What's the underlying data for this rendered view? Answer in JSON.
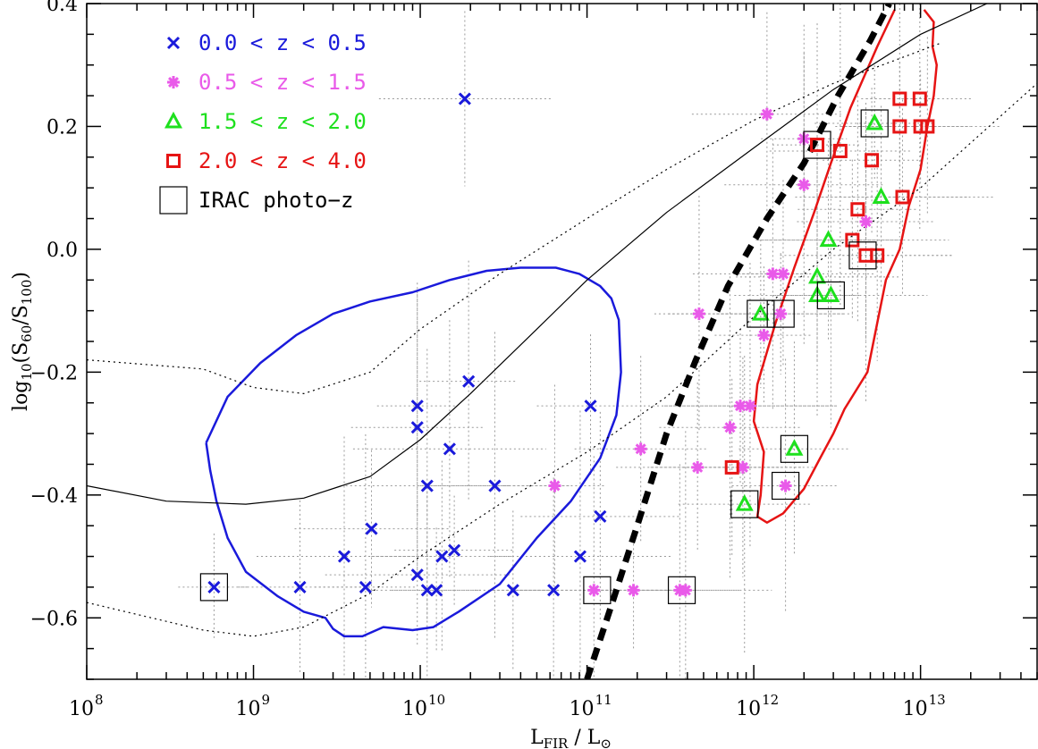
{
  "chart_data": {
    "type": "scatter",
    "xlabel_main": "L",
    "xlabel_sub": "FIR",
    "xlabel_rest": " / L",
    "xlabel_sun": "⊙",
    "ylabel_pre": "log",
    "ylabel_sub1": "10",
    "ylabel_mid": "(S",
    "ylabel_sub2": "60",
    "ylabel_mid2": "/S",
    "ylabel_sub3": "100",
    "ylabel_post": ")",
    "x_scale": "log",
    "xlim": [
      100000000.0,
      50000000000000.0
    ],
    "ylim": [
      -0.7,
      0.4
    ],
    "x_ticks": [
      {
        "base": "10",
        "exp": "8",
        "value": 100000000.0
      },
      {
        "base": "10",
        "exp": "9",
        "value": 1000000000.0
      },
      {
        "base": "10",
        "exp": "10",
        "value": 10000000000.0
      },
      {
        "base": "10",
        "exp": "11",
        "value": 100000000000.0
      },
      {
        "base": "10",
        "exp": "12",
        "value": 1000000000000.0
      },
      {
        "base": "10",
        "exp": "13",
        "value": 10000000000000.0
      }
    ],
    "y_ticks": [
      {
        "label": "0.4",
        "value": 0.4
      },
      {
        "label": "0.2",
        "value": 0.2
      },
      {
        "label": "0.0",
        "value": 0.0
      },
      {
        "label": "−0.2",
        "value": -0.2
      },
      {
        "label": "−0.4",
        "value": -0.4
      },
      {
        "label": "−0.6",
        "value": -0.6
      }
    ],
    "legend": [
      {
        "label": "0.0 < z < 0.5",
        "marker": "x",
        "color": "#1a1adb"
      },
      {
        "label": "0.5 < z < 1.5",
        "marker": "asterisk",
        "color": "#e95ae9"
      },
      {
        "label": "1.5 < z < 2.0",
        "marker": "triangle",
        "color": "#1ee01e"
      },
      {
        "label": "2.0 < z < 4.0",
        "marker": "square",
        "color": "#e61414"
      },
      {
        "label": "IRAC photo−z",
        "marker": "box",
        "color": "#000000"
      }
    ],
    "series": [
      {
        "name": "0.0 < z < 0.5",
        "marker": "x",
        "color": "#1a1adb",
        "points": [
          [
            580000000.0,
            -0.55
          ],
          [
            1900000000.0,
            -0.55
          ],
          [
            3500000000.0,
            -0.5
          ],
          [
            4700000000.0,
            -0.55
          ],
          [
            5100000000.0,
            -0.455
          ],
          [
            9600000000.0,
            -0.255
          ],
          [
            9600000000.0,
            -0.29
          ],
          [
            9600000000.0,
            -0.53
          ],
          [
            11000000000.0,
            -0.555
          ],
          [
            11000000000.0,
            -0.385
          ],
          [
            12500000000.0,
            -0.555
          ],
          [
            13500000000.0,
            -0.5
          ],
          [
            15000000000.0,
            -0.325
          ],
          [
            16000000000.0,
            -0.49
          ],
          [
            18500000000.0,
            0.245
          ],
          [
            19500000000.0,
            -0.215
          ],
          [
            28000000000.0,
            -0.385
          ],
          [
            36000000000.0,
            -0.555
          ],
          [
            63000000000.0,
            -0.555
          ],
          [
            91000000000.0,
            -0.5
          ],
          [
            105000000000.0,
            -0.255
          ],
          [
            120000000000.0,
            -0.435
          ]
        ]
      },
      {
        "name": "0.5 < z < 1.5",
        "marker": "asterisk",
        "color": "#e95ae9",
        "points": [
          [
            64000000000.0,
            -0.385
          ],
          [
            110000000000.0,
            -0.555
          ],
          [
            190000000000.0,
            -0.555
          ],
          [
            210000000000.0,
            -0.325
          ],
          [
            360000000000.0,
            -0.555
          ],
          [
            390000000000.0,
            -0.555
          ],
          [
            460000000000.0,
            -0.355
          ],
          [
            470000000000.0,
            -0.105
          ],
          [
            720000000000.0,
            -0.29
          ],
          [
            830000000000.0,
            -0.255
          ],
          [
            860000000000.0,
            -0.355
          ],
          [
            950000000000.0,
            -0.255
          ],
          [
            1150000000000.0,
            -0.14
          ],
          [
            1200000000000.0,
            0.22
          ],
          [
            1300000000000.0,
            -0.04
          ],
          [
            1450000000000.0,
            -0.105
          ],
          [
            1500000000000.0,
            -0.04
          ],
          [
            1550000000000.0,
            -0.385
          ],
          [
            2000000000000.0,
            0.105
          ],
          [
            2000000000000.0,
            0.18
          ],
          [
            4700000000000.0,
            0.045
          ]
        ]
      },
      {
        "name": "1.5 < z < 2.0",
        "marker": "triangle",
        "color": "#1ee01e",
        "points": [
          [
            880000000000.0,
            -0.415
          ],
          [
            1100000000000.0,
            -0.105
          ],
          [
            1750000000000.0,
            -0.325
          ],
          [
            2400000000000.0,
            -0.045
          ],
          [
            2400000000000.0,
            -0.075
          ],
          [
            2800000000000.0,
            0.015
          ],
          [
            2900000000000.0,
            -0.075
          ],
          [
            5300000000000.0,
            0.205
          ],
          [
            5800000000000.0,
            0.085
          ]
        ]
      },
      {
        "name": "2.0 < z < 4.0",
        "marker": "square",
        "color": "#e61414",
        "points": [
          [
            740000000000.0,
            -0.355
          ],
          [
            2400000000000.0,
            0.17
          ],
          [
            3300000000000.0,
            0.16
          ],
          [
            3900000000000.0,
            0.015
          ],
          [
            4200000000000.0,
            0.065
          ],
          [
            4700000000000.0,
            -0.01
          ],
          [
            5100000000000.0,
            0.145
          ],
          [
            5500000000000.0,
            -0.01
          ],
          [
            7500000000000.0,
            0.245
          ],
          [
            7500000000000.0,
            0.2
          ],
          [
            7800000000000.0,
            0.085
          ],
          [
            9900000000000.0,
            0.245
          ],
          [
            10000000000000.0,
            0.2
          ],
          [
            11000000000000.0,
            0.2
          ]
        ]
      },
      {
        "name": "IRAC photo-z",
        "marker": "box",
        "color": "#000000",
        "points": [
          [
            580000000.0,
            -0.55
          ],
          [
            115000000000.0,
            -0.555
          ],
          [
            370000000000.0,
            -0.555
          ],
          [
            880000000000.0,
            -0.415
          ],
          [
            1100000000000.0,
            -0.105
          ],
          [
            1450000000000.0,
            -0.105
          ],
          [
            1550000000000.0,
            -0.385
          ],
          [
            1750000000000.0,
            -0.325
          ],
          [
            2400000000000.0,
            0.17
          ],
          [
            2900000000000.0,
            -0.075
          ],
          [
            4500000000000.0,
            -0.01
          ],
          [
            5300000000000.0,
            0.205
          ]
        ]
      }
    ],
    "curves": [
      {
        "name": "blue-contour",
        "color": "#1a1adb",
        "width": 2.5,
        "dash": "",
        "points": [
          [
            520000000.0,
            -0.315
          ],
          [
            700000000.0,
            -0.24
          ],
          [
            1100000000.0,
            -0.185
          ],
          [
            1800000000.0,
            -0.14
          ],
          [
            3000000000.0,
            -0.105
          ],
          [
            5000000000.0,
            -0.085
          ],
          [
            9000000000.0,
            -0.07
          ],
          [
            15000000000.0,
            -0.05
          ],
          [
            25000000000.0,
            -0.035
          ],
          [
            40000000000.0,
            -0.03
          ],
          [
            65000000000.0,
            -0.03
          ],
          [
            90000000000.0,
            -0.04
          ],
          [
            120000000000.0,
            -0.06
          ],
          [
            140000000000.0,
            -0.08
          ],
          [
            155000000000.0,
            -0.115
          ],
          [
            160000000000.0,
            -0.2
          ],
          [
            150000000000.0,
            -0.27
          ],
          [
            120000000000.0,
            -0.34
          ],
          [
            80000000000.0,
            -0.41
          ],
          [
            50000000000.0,
            -0.47
          ],
          [
            30000000000.0,
            -0.545
          ],
          [
            17000000000.0,
            -0.59
          ],
          [
            12000000000.0,
            -0.615
          ],
          [
            9000000000.0,
            -0.62
          ],
          [
            6000000000.0,
            -0.615
          ],
          [
            4500000000.0,
            -0.63
          ],
          [
            3500000000.0,
            -0.63
          ],
          [
            3000000000.0,
            -0.618
          ],
          [
            2700000000.0,
            -0.6
          ],
          [
            2000000000.0,
            -0.59
          ],
          [
            1400000000.0,
            -0.565
          ],
          [
            900000000.0,
            -0.525
          ],
          [
            700000000.0,
            -0.47
          ],
          [
            600000000.0,
            -0.41
          ],
          [
            550000000.0,
            -0.36
          ],
          [
            520000000.0,
            -0.315
          ]
        ]
      },
      {
        "name": "red-contour",
        "color": "#e61414",
        "width": 2.5,
        "dash": "",
        "points": [
          [
            10500000000000.0,
            0.39
          ],
          [
            12000000000000.0,
            0.37
          ],
          [
            11800000000000.0,
            0.33
          ],
          [
            12500000000000.0,
            0.3
          ],
          [
            12000000000000.0,
            0.25
          ],
          [
            11000000000000.0,
            0.2
          ],
          [
            10000000000000.0,
            0.13
          ],
          [
            8500000000000.0,
            0.07
          ],
          [
            7500000000000.0,
            0.0
          ],
          [
            6200000000000.0,
            -0.05
          ],
          [
            5500000000000.0,
            -0.12
          ],
          [
            4800000000000.0,
            -0.2
          ],
          [
            3500000000000.0,
            -0.26
          ],
          [
            3000000000000.0,
            -0.3
          ],
          [
            2500000000000.0,
            -0.34
          ],
          [
            2000000000000.0,
            -0.39
          ],
          [
            1500000000000.0,
            -0.43
          ],
          [
            1200000000000.0,
            -0.445
          ],
          [
            1050000000000.0,
            -0.435
          ],
          [
            1100000000000.0,
            -0.4
          ],
          [
            1150000000000.0,
            -0.33
          ],
          [
            1000000000000.0,
            -0.28
          ],
          [
            1050000000000.0,
            -0.22
          ],
          [
            1350000000000.0,
            -0.12
          ],
          [
            1750000000000.0,
            -0.03
          ],
          [
            2300000000000.0,
            0.06
          ],
          [
            2900000000000.0,
            0.14
          ],
          [
            3800000000000.0,
            0.23
          ],
          [
            5500000000000.0,
            0.33
          ],
          [
            7000000000000.0,
            0.39
          ]
        ]
      },
      {
        "name": "model-solid",
        "color": "#000000",
        "width": 1.2,
        "dash": "",
        "points": [
          [
            100000000.0,
            -0.385
          ],
          [
            300000000.0,
            -0.41
          ],
          [
            900000000.0,
            -0.415
          ],
          [
            2000000000.0,
            -0.405
          ],
          [
            5000000000.0,
            -0.37
          ],
          [
            10000000000.0,
            -0.31
          ],
          [
            20000000000.0,
            -0.235
          ],
          [
            50000000000.0,
            -0.13
          ],
          [
            100000000000.0,
            -0.05
          ],
          [
            300000000000.0,
            0.06
          ],
          [
            1000000000000.0,
            0.165
          ],
          [
            3000000000000.0,
            0.26
          ],
          [
            10000000000000.0,
            0.35
          ],
          [
            25000000000000.0,
            0.4
          ]
        ]
      },
      {
        "name": "model-dotted-upper",
        "color": "#000000",
        "width": 1.2,
        "dash": "2,4",
        "points": [
          [
            100000000.0,
            -0.18
          ],
          [
            500000000.0,
            -0.195
          ],
          [
            1000000000.0,
            -0.225
          ],
          [
            2000000000.0,
            -0.235
          ],
          [
            5000000000.0,
            -0.2
          ],
          [
            10000000000.0,
            -0.13
          ],
          [
            30000000000.0,
            -0.04
          ],
          [
            100000000000.0,
            0.05
          ],
          [
            300000000000.0,
            0.13
          ],
          [
            1000000000000.0,
            0.21
          ],
          [
            3000000000000.0,
            0.27
          ],
          [
            13000000000000.0,
            0.335
          ]
        ]
      },
      {
        "name": "model-dotted-lower",
        "color": "#000000",
        "width": 1.2,
        "dash": "2,4",
        "points": [
          [
            100000000.0,
            -0.575
          ],
          [
            500000000.0,
            -0.62
          ],
          [
            1000000000.0,
            -0.63
          ],
          [
            2000000000.0,
            -0.615
          ],
          [
            5000000000.0,
            -0.56
          ],
          [
            10000000000.0,
            -0.5
          ],
          [
            30000000000.0,
            -0.415
          ],
          [
            100000000000.0,
            -0.33
          ],
          [
            300000000000.0,
            -0.24
          ],
          [
            1000000000000.0,
            -0.11
          ],
          [
            3000000000000.0,
            0.0
          ],
          [
            10000000000000.0,
            0.1
          ],
          [
            50000000000000.0,
            0.27
          ]
        ]
      },
      {
        "name": "model-thick-dashed",
        "color": "#000000",
        "width": 7,
        "dash": "14,9",
        "points": [
          [
            100000000000.0,
            -0.7
          ],
          [
            140000000000.0,
            -0.58
          ],
          [
            200000000000.0,
            -0.45
          ],
          [
            300000000000.0,
            -0.3
          ],
          [
            450000000000.0,
            -0.18
          ],
          [
            700000000000.0,
            -0.06
          ],
          [
            1200000000000.0,
            0.05
          ],
          [
            2000000000000.0,
            0.14
          ],
          [
            3200000000000.0,
            0.25
          ],
          [
            5000000000000.0,
            0.34
          ],
          [
            6500000000000.0,
            0.4
          ]
        ]
      }
    ],
    "grid": false
  }
}
